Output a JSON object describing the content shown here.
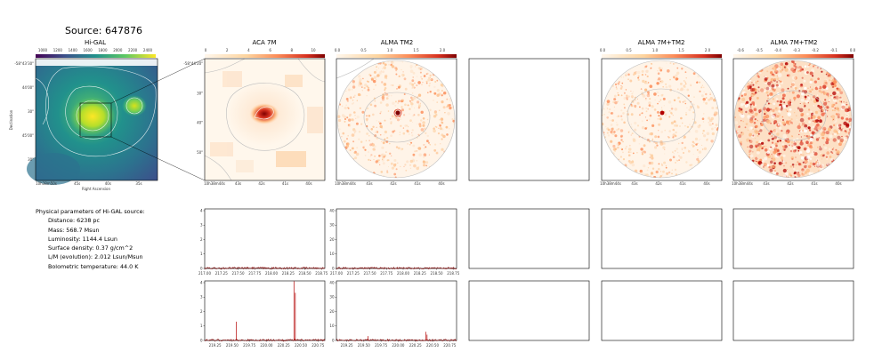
{
  "source_title": "Source: 647876",
  "panels": {
    "higal": {
      "title": "Hi-GAL",
      "colorbar_ticks": [
        "1000",
        "1200",
        "1400",
        "1600",
        "1800",
        "2000",
        "2200",
        "2400"
      ],
      "ylabel": "Declination",
      "xlabel": "Right Ascension",
      "yticks": [
        "-58°43'30\"",
        "44'00\"",
        "30\"",
        "45'00\"",
        "30\""
      ],
      "xticks": [
        "10h38m50s",
        "45s",
        "40s",
        "35s"
      ]
    },
    "aca7m": {
      "title": "ACA 7M",
      "colorbar_ticks": [
        "0",
        "2",
        "4",
        "6",
        "8",
        "10"
      ],
      "yticks": [
        "-58°44'20\"",
        "30\"",
        "40\"",
        "50\""
      ],
      "xticks": [
        "10h38m44s",
        "43s",
        "42s",
        "41s",
        "40s"
      ]
    },
    "almatm2": {
      "title": "ALMA TM2",
      "colorbar_ticks": [
        "0.0",
        "0.5",
        "1.0",
        "1.5",
        "2.0"
      ],
      "xticks": [
        "10h38m44s",
        "43s",
        "42s",
        "41s",
        "40s"
      ]
    },
    "alma7mtm2": {
      "title": "ALMA 7M+TM2",
      "colorbar_ticks": [
        "0.0",
        "0.5",
        "1.0",
        "1.5",
        "2.0"
      ],
      "xticks": [
        "10h38m44s",
        "43s",
        "42s",
        "41s",
        "40s"
      ]
    },
    "alma7mtm2_residual": {
      "title": "ALMA 7M+TM2",
      "colorbar_ticks": [
        "-0.6",
        "-0.5",
        "-0.4",
        "-0.3",
        "-0.2",
        "-0.1",
        "0.0"
      ],
      "xticks": [
        "10h38m44s",
        "43s",
        "42s",
        "41s",
        "40s"
      ]
    }
  },
  "properties": {
    "header": "Physical parameters of Hi-GAL source:",
    "lines": [
      "Distance: 6238 pc",
      "Mass: 568.7 Msun",
      "Luminosity: 1144.4 Lsun",
      "Surface density: 0.37 g/cm^2",
      "L/M (evolution): 2.012 Lsun/Msun",
      "Bolometric temperature: 44.0 K"
    ]
  },
  "chart_data": [
    {
      "type": "line",
      "panel": "aca7m_spectrum_upper",
      "x_range": [
        217.0,
        218.8
      ],
      "xticks": [
        "217.00",
        "217.25",
        "217.50",
        "217.75",
        "218.00",
        "218.25",
        "218.50",
        "218.75"
      ],
      "ylim": [
        0,
        4
      ],
      "yticks": [
        "0",
        "1",
        "2",
        "3",
        "4"
      ],
      "peaks": []
    },
    {
      "type": "line",
      "panel": "almatm2_spectrum_upper",
      "x_range": [
        217.0,
        218.8
      ],
      "xticks": [
        "217.00",
        "217.25",
        "217.50",
        "217.75",
        "218.00",
        "218.25",
        "218.50",
        "218.75"
      ],
      "ylim": [
        0,
        40
      ],
      "yticks": [
        "0",
        "10",
        "20",
        "30",
        "40"
      ],
      "peaks": []
    },
    {
      "type": "line",
      "panel": "aca7m_spectrum_lower",
      "x_range": [
        219.1,
        220.85
      ],
      "xticks": [
        "219.25",
        "219.50",
        "219.75",
        "220.00",
        "220.25",
        "220.50",
        "220.75"
      ],
      "ylim": [
        0,
        4
      ],
      "yticks": [
        "0",
        "1",
        "2",
        "3",
        "4"
      ],
      "peaks": [
        {
          "x": 219.56,
          "y": 1.3
        },
        {
          "x": 220.4,
          "y": 4.1
        },
        {
          "x": 220.42,
          "y": 3.3
        }
      ]
    },
    {
      "type": "line",
      "panel": "almatm2_spectrum_lower",
      "x_range": [
        219.1,
        220.85
      ],
      "xticks": [
        "219.25",
        "219.50",
        "219.75",
        "220.00",
        "220.25",
        "220.50",
        "220.75"
      ],
      "ylim": [
        0,
        40
      ],
      "yticks": [
        "0",
        "10",
        "20",
        "30",
        "40"
      ],
      "peaks": [
        {
          "x": 219.56,
          "y": 3.0
        },
        {
          "x": 220.4,
          "y": 6.0
        },
        {
          "x": 220.42,
          "y": 4.0
        }
      ]
    }
  ]
}
